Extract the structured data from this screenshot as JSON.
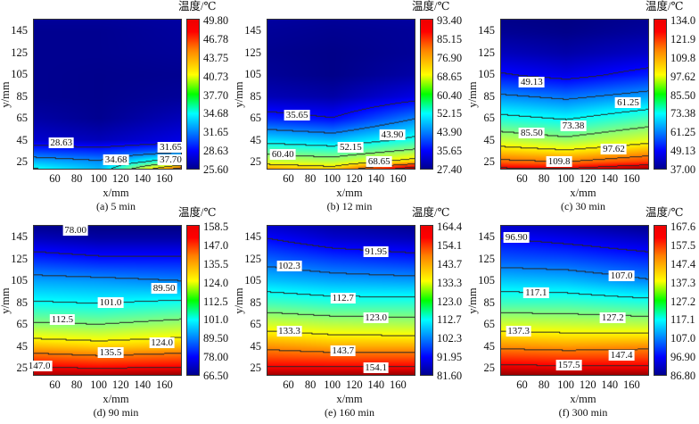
{
  "chart_data": [
    {
      "type": "heatmap",
      "caption": "(a) 5 min",
      "legend_title": "温度/℃",
      "xlabel": "x/mm",
      "ylabel": "y/mm",
      "xlim": [
        40,
        176
      ],
      "ylim": [
        18,
        156
      ],
      "xticks": [
        60,
        80,
        100,
        120,
        140,
        160
      ],
      "yticks": [
        25,
        45,
        65,
        85,
        105,
        125,
        145
      ],
      "colorbar_ticks": [
        "25.60",
        "28.63",
        "31.65",
        "34.68",
        "37.70",
        "40.73",
        "43.75",
        "46.78",
        "49.80"
      ],
      "crange": [
        25.6,
        49.8
      ],
      "grid_x": [
        40,
        100,
        176
      ],
      "grid_y": [
        18,
        25,
        35,
        45,
        65,
        85,
        105,
        125,
        145,
        156
      ],
      "temperature": [
        [
          35,
          33,
          46
        ],
        [
          33,
          32,
          37
        ],
        [
          30,
          29.5,
          31
        ],
        [
          27.5,
          27,
          28
        ],
        [
          26.5,
          26,
          27
        ],
        [
          26,
          25.9,
          26.2
        ],
        [
          26,
          25.9,
          26
        ],
        [
          26,
          26,
          26.2
        ],
        [
          26,
          26,
          26.3
        ],
        [
          26.2,
          26.2,
          26.4
        ]
      ],
      "contour_labels": [
        {
          "text": "28.63",
          "x": 65,
          "y": 43
        },
        {
          "text": "34.68",
          "x": 115,
          "y": 28
        },
        {
          "text": "31.65",
          "x": 165,
          "y": 39
        },
        {
          "text": "37.70",
          "x": 165,
          "y": 28
        }
      ]
    },
    {
      "type": "heatmap",
      "caption": "(b) 12 min",
      "legend_title": "温度/℃",
      "xlabel": "x/mm",
      "ylabel": "y/mm",
      "xlim": [
        40,
        176
      ],
      "ylim": [
        18,
        156
      ],
      "xticks": [
        60,
        80,
        100,
        120,
        140,
        160
      ],
      "yticks": [
        25,
        45,
        65,
        85,
        105,
        125,
        145
      ],
      "colorbar_ticks": [
        "27.40",
        "35.65",
        "43.90",
        "52.15",
        "60.40",
        "68.65",
        "76.90",
        "85.15",
        "93.40"
      ],
      "crange": [
        27.4,
        93.4
      ],
      "grid_x": [
        40,
        100,
        176
      ],
      "grid_y": [
        18,
        25,
        35,
        45,
        65,
        85,
        105,
        125,
        145,
        156
      ],
      "temperature": [
        [
          75,
          72,
          92
        ],
        [
          66,
          64,
          72
        ],
        [
          58,
          56,
          62
        ],
        [
          50,
          48,
          54
        ],
        [
          38,
          36,
          44
        ],
        [
          31,
          30,
          34
        ],
        [
          29,
          28,
          30
        ],
        [
          28.5,
          28,
          29
        ],
        [
          29,
          28.5,
          29
        ],
        [
          29.5,
          29,
          29.5
        ]
      ],
      "contour_labels": [
        {
          "text": "35.65",
          "x": 67,
          "y": 69
        },
        {
          "text": "43.90",
          "x": 154,
          "y": 51
        },
        {
          "text": "52.15",
          "x": 116,
          "y": 39
        },
        {
          "text": "60.40",
          "x": 54,
          "y": 33
        },
        {
          "text": "68.65",
          "x": 142,
          "y": 26
        }
      ]
    },
    {
      "type": "heatmap",
      "caption": "(c) 30 min",
      "legend_title": "温度/℃",
      "xlabel": "x/mm",
      "ylabel": "y/mm",
      "xlim": [
        40,
        176
      ],
      "ylim": [
        18,
        156
      ],
      "xticks": [
        60,
        80,
        100,
        120,
        140,
        160
      ],
      "yticks": [
        25,
        45,
        65,
        85,
        105,
        125,
        145
      ],
      "colorbar_ticks": [
        "37.00",
        "49.13",
        "61.25",
        "73.38",
        "85.50",
        "97.62",
        "109.8",
        "121.9",
        "134.0"
      ],
      "crange": [
        37,
        134
      ],
      "grid_x": [
        40,
        100,
        176
      ],
      "grid_y": [
        18,
        25,
        35,
        45,
        65,
        85,
        105,
        125,
        145,
        156
      ],
      "temperature": [
        [
          125,
          124,
          132
        ],
        [
          112,
          110,
          116
        ],
        [
          102,
          99,
          105
        ],
        [
          92,
          88,
          95
        ],
        [
          76,
          73,
          80
        ],
        [
          63,
          60,
          65
        ],
        [
          50,
          47,
          52
        ],
        [
          43,
          41,
          44
        ],
        [
          39,
          38,
          40
        ],
        [
          38,
          37.5,
          39
        ]
      ],
      "contour_labels": [
        {
          "text": "49.13",
          "x": 68,
          "y": 99
        },
        {
          "text": "61.25",
          "x": 156,
          "y": 80
        },
        {
          "text": "73.38",
          "x": 106,
          "y": 59
        },
        {
          "text": "85.50",
          "x": 68,
          "y": 52
        },
        {
          "text": "97.62",
          "x": 143,
          "y": 38
        },
        {
          "text": "109.8",
          "x": 93,
          "y": 26
        }
      ]
    },
    {
      "type": "heatmap",
      "caption": "(d) 90 min",
      "legend_title": "温度/℃",
      "xlabel": "x/mm",
      "ylabel": "y/mm",
      "xlim": [
        40,
        176
      ],
      "ylim": [
        18,
        156
      ],
      "xticks": [
        60,
        80,
        100,
        120,
        140,
        160
      ],
      "yticks": [
        25,
        45,
        65,
        85,
        105,
        125,
        145
      ],
      "colorbar_ticks": [
        "66.50",
        "78.00",
        "89.50",
        "101.0",
        "112.5",
        "124.0",
        "135.5",
        "147.0",
        "158.5"
      ],
      "crange": [
        66.5,
        158.5
      ],
      "grid_x": [
        40,
        100,
        176
      ],
      "grid_y": [
        18,
        25,
        35,
        45,
        65,
        85,
        105,
        125,
        145,
        156
      ],
      "temperature": [
        [
          155,
          155,
          157
        ],
        [
          148,
          147,
          148
        ],
        [
          139,
          137,
          139
        ],
        [
          130,
          128,
          130
        ],
        [
          114,
          113,
          116
        ],
        [
          102,
          101,
          103
        ],
        [
          93,
          92,
          90
        ],
        [
          82,
          80,
          80
        ],
        [
          72,
          70,
          70
        ],
        [
          68,
          67,
          67
        ]
      ],
      "contour_labels": [
        {
          "text": "78.00",
          "x": 78,
          "y": 152
        },
        {
          "text": "89.50",
          "x": 159,
          "y": 99
        },
        {
          "text": "101.0",
          "x": 110,
          "y": 86
        },
        {
          "text": "112.5",
          "x": 66,
          "y": 70
        },
        {
          "text": "124.0",
          "x": 157,
          "y": 49
        },
        {
          "text": "135.5",
          "x": 110,
          "y": 40
        },
        {
          "text": "147.0",
          "x": 45,
          "y": 28
        }
      ]
    },
    {
      "type": "heatmap",
      "caption": "(e) 160 min",
      "legend_title": "温度/℃",
      "xlabel": "x/mm",
      "ylabel": "y/mm",
      "xlim": [
        40,
        176
      ],
      "ylim": [
        18,
        156
      ],
      "xticks": [
        60,
        80,
        100,
        120,
        140,
        160
      ],
      "yticks": [
        25,
        45,
        65,
        85,
        105,
        125,
        145
      ],
      "colorbar_ticks": [
        "81.60",
        "91.95",
        "102.3",
        "112.7",
        "123.0",
        "133.3",
        "143.7",
        "154.1",
        "164.4"
      ],
      "crange": [
        81.6,
        164.4
      ],
      "grid_x": [
        40,
        100,
        176
      ],
      "grid_y": [
        18,
        25,
        35,
        45,
        65,
        85,
        105,
        125,
        145,
        156
      ],
      "temperature": [
        [
          162,
          162,
          163
        ],
        [
          155,
          155,
          155
        ],
        [
          148,
          147,
          147
        ],
        [
          142,
          140,
          140
        ],
        [
          130,
          128,
          127
        ],
        [
          118,
          116,
          116
        ],
        [
          108,
          106,
          105
        ],
        [
          100,
          97,
          95
        ],
        [
          92,
          88,
          86
        ],
        [
          88,
          85,
          83
        ]
      ],
      "contour_labels": [
        {
          "text": "102.3",
          "x": 60,
          "y": 119
        },
        {
          "text": "91.95",
          "x": 139,
          "y": 132
        },
        {
          "text": "112.7",
          "x": 109,
          "y": 90
        },
        {
          "text": "123.0",
          "x": 139,
          "y": 72
        },
        {
          "text": "133.3",
          "x": 60,
          "y": 60
        },
        {
          "text": "143.7",
          "x": 109,
          "y": 42
        },
        {
          "text": "154.1",
          "x": 139,
          "y": 26
        }
      ]
    },
    {
      "type": "heatmap",
      "caption": "(f) 300 min",
      "legend_title": "温度/℃",
      "xlabel": "x/mm",
      "ylabel": "y/mm",
      "xlim": [
        40,
        176
      ],
      "ylim": [
        18,
        156
      ],
      "xticks": [
        60,
        80,
        100,
        120,
        140,
        160
      ],
      "yticks": [
        25,
        45,
        65,
        85,
        105,
        125,
        145
      ],
      "colorbar_ticks": [
        "86.80",
        "96.90",
        "107.0",
        "117.1",
        "127.2",
        "137.3",
        "147.4",
        "157.5",
        "167.6"
      ],
      "crange": [
        86.8,
        167.6
      ],
      "grid_x": [
        40,
        100,
        176
      ],
      "grid_y": [
        18,
        25,
        35,
        45,
        65,
        85,
        105,
        125,
        145,
        156
      ],
      "temperature": [
        [
          166,
          166,
          166
        ],
        [
          160,
          159,
          159
        ],
        [
          153,
          152,
          152
        ],
        [
          146,
          145,
          146
        ],
        [
          134,
          133,
          132
        ],
        [
          122,
          122,
          120
        ],
        [
          113,
          112,
          108
        ],
        [
          104,
          103,
          100
        ],
        [
          97,
          95,
          92
        ],
        [
          93,
          91,
          88
        ]
      ],
      "contour_labels": [
        {
          "text": "96.90",
          "x": 54,
          "y": 145
        },
        {
          "text": "107.0",
          "x": 150,
          "y": 110
        },
        {
          "text": "117.1",
          "x": 72,
          "y": 95
        },
        {
          "text": "127.2",
          "x": 142,
          "y": 72
        },
        {
          "text": "137.3",
          "x": 56,
          "y": 60
        },
        {
          "text": "147.4",
          "x": 150,
          "y": 38
        },
        {
          "text": "157.5",
          "x": 102,
          "y": 29
        }
      ]
    }
  ]
}
